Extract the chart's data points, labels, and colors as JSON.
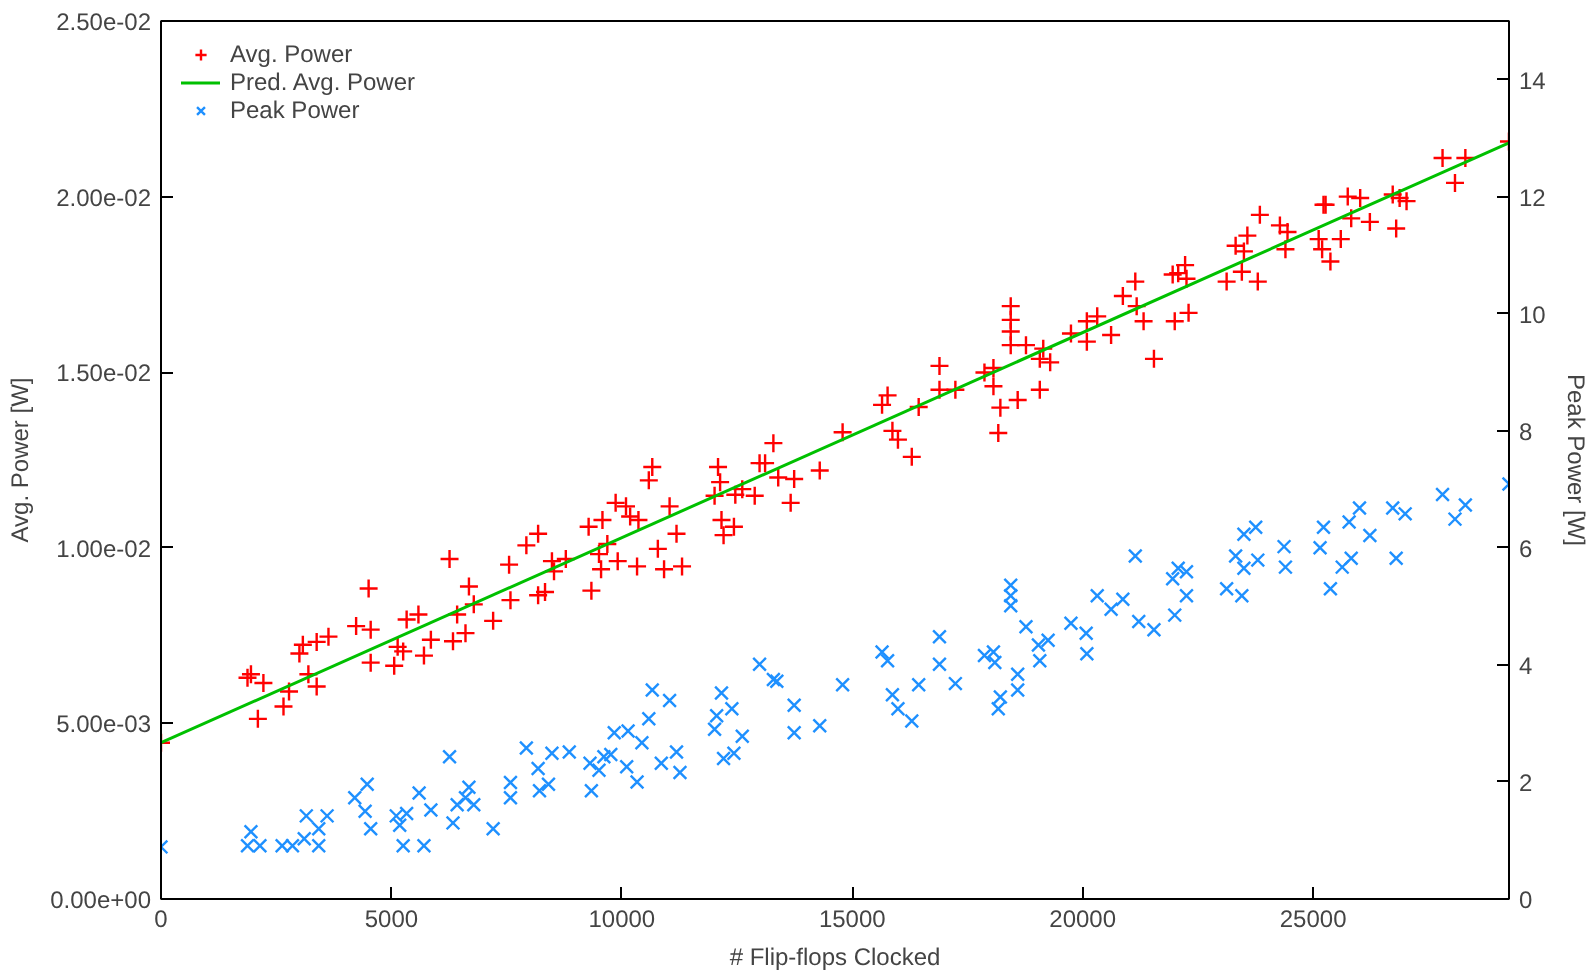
{
  "chart_data": {
    "type": "scatter",
    "xlabel": "# Flip-flops Clocked",
    "ylabel": "Avg. Power [W]",
    "y2label": "Peak Power [W]",
    "xlim": [
      0,
      29250
    ],
    "xticks": [
      0,
      5000,
      10000,
      15000,
      20000,
      25000
    ],
    "ylim": [
      0,
      0.025
    ],
    "yticks": [
      {
        "value": 0,
        "label": "0.00e+00"
      },
      {
        "value": 0.005,
        "label": "5.00e-03"
      },
      {
        "value": 0.01,
        "label": "1.00e-02"
      },
      {
        "value": 0.015,
        "label": "1.50e-02"
      },
      {
        "value": 0.02,
        "label": "2.00e-02"
      },
      {
        "value": 0.025,
        "label": "2.50e-02"
      }
    ],
    "y2lim": [
      0,
      15
    ],
    "y2ticks": [
      0,
      2,
      4,
      6,
      8,
      10,
      12,
      14
    ],
    "legend": "top left",
    "grid": false,
    "series": [
      {
        "name": "Avg. Power",
        "marker": "cross",
        "color": "#ff0000",
        "x": [
          0,
          1877,
          1952,
          2222,
          2102,
          2658,
          2778,
          3003,
          3078,
          3198,
          3378,
          3378,
          3634,
          4234,
          4505,
          4550,
          4550,
          5060,
          5135,
          5255,
          5330,
          5586,
          5706,
          5856,
          6261,
          6336,
          6426,
          6607,
          6682,
          6787,
          7207,
          7583,
          7553,
          7928,
          8183,
          8183,
          8333,
          8483,
          8528,
          8784,
          9279,
          9339,
          9504,
          9579,
          9549,
          9685,
          9865,
          9910,
          10090,
          10180,
          10360,
          10330,
          10585,
          10660,
          10781,
          10916,
          11036,
          11186,
          11306,
          12012,
          12087,
          12132,
          12162,
          12207,
          12432,
          12462,
          12613,
          12883,
          12988,
          13108,
          13288,
          13393,
          13663,
          13739,
          14294,
          14790,
          15646,
          15766,
          15871,
          15991,
          16291,
          16441,
          16892,
          16892,
          17237,
          17868,
          18063,
          18063,
          18168,
          18213,
          18438,
          18438,
          18438,
          18438,
          18589,
          18769,
          19069,
          19069,
          19144,
          19294,
          19745,
          20090,
          20090,
          20315,
          20616,
          20871,
          21141,
          21171,
          21321,
          21546,
          21952,
          21997,
          22072,
          22222,
          22252,
          22297,
          23123,
          23318,
          23453,
          23498,
          23573,
          23799,
          23844,
          24279,
          24399,
          24444,
          25120,
          25225,
          25270,
          25195,
          25375,
          25600,
          25751,
          25826,
          26021,
          26231,
          26727,
          26802,
          26877,
          27027,
          27808,
          28078,
          28303,
          29249
        ],
        "values": [
          0.00445,
          0.0063,
          0.0064,
          0.00615,
          0.00513,
          0.00548,
          0.00591,
          0.00699,
          0.00724,
          0.0064,
          0.00605,
          0.00732,
          0.00747,
          0.00777,
          0.00884,
          0.00767,
          0.00673,
          0.00664,
          0.00718,
          0.00705,
          0.00796,
          0.0081,
          0.00693,
          0.00738,
          0.00968,
          0.00734,
          0.0081,
          0.00757,
          0.0089,
          0.00839,
          0.00792,
          0.00851,
          0.00952,
          0.01007,
          0.0104,
          0.00865,
          0.00874,
          0.00962,
          0.00933,
          0.00968,
          0.0106,
          0.00878,
          0.00982,
          0.01079,
          0.00939,
          0.01011,
          0.01128,
          0.00962,
          0.01118,
          0.01089,
          0.01079,
          0.00947,
          0.01192,
          0.0123,
          0.00997,
          0.00939,
          0.01118,
          0.0104,
          0.00947,
          0.01148,
          0.0123,
          0.01187,
          0.01079,
          0.01036,
          0.0106,
          0.01151,
          0.01167,
          0.01148,
          0.01241,
          0.01241,
          0.01298,
          0.012,
          0.01128,
          0.01196,
          0.0122,
          0.01329,
          0.01407,
          0.01434,
          0.01333,
          0.01308,
          0.01259,
          0.01401,
          0.01518,
          0.0145,
          0.0145,
          0.01499,
          0.01512,
          0.0146,
          0.01327,
          0.01399,
          0.01688,
          0.01649,
          0.01616,
          0.01577,
          0.01421,
          0.01577,
          0.01538,
          0.0145,
          0.01567,
          0.01528,
          0.0161,
          0.01645,
          0.01587,
          0.01659,
          0.01606,
          0.01717,
          0.01758,
          0.01688,
          0.01645,
          0.01538,
          0.01778,
          0.01645,
          0.01782,
          0.01805,
          0.01766,
          0.01669,
          0.01758,
          0.0186,
          0.01786,
          0.01844,
          0.01889,
          0.01758,
          0.01948,
          0.01918,
          0.0185,
          0.01899,
          0.01879,
          0.01977,
          0.01977,
          0.0185,
          0.01815,
          0.01879,
          0.02,
          0.01938,
          0.01996,
          0.01928,
          0.02006,
          0.01909,
          0.01996,
          0.01987,
          0.0211,
          0.02039,
          0.0211,
          0.02157
        ]
      },
      {
        "name": "Pred. Avg. Power",
        "type": "line",
        "line_style": "solid",
        "color": "#00c000",
        "x": [
          0,
          29250
        ],
        "values": [
          0.00445,
          0.02153
        ]
      },
      {
        "name": "Peak Power",
        "marker": "x",
        "axis": "y2",
        "color": "#1e90ff",
        "x": [
          0,
          1877,
          1952,
          2147,
          2628,
          2853,
          3108,
          3153,
          3423,
          3423,
          3604,
          4204,
          4474,
          4429,
          4550,
          5105,
          5180,
          5255,
          5330,
          5601,
          5706,
          5856,
          6261,
          6336,
          6426,
          6607,
          6682,
          6787,
          7207,
          7583,
          7583,
          7928,
          8183,
          8213,
          8408,
          8483,
          8859,
          9309,
          9339,
          9504,
          9610,
          9760,
          9835,
          10105,
          10135,
          10330,
          10435,
          10585,
          10660,
          10856,
          11036,
          11186,
          11261,
          12012,
          12057,
          12162,
          12207,
          12387,
          12432,
          12613,
          12988,
          13288,
          13363,
          13739,
          13739,
          14294,
          14790,
          15646,
          15766,
          15871,
          15991,
          16291,
          16441,
          16892,
          16892,
          17237,
          17868,
          18063,
          18093,
          18168,
          18213,
          18438,
          18438,
          18438,
          18589,
          18589,
          18769,
          19039,
          19069,
          19249,
          19745,
          20075,
          20090,
          20315,
          20616,
          20871,
          21141,
          21216,
          21546,
          21952,
          21997,
          22072,
          22252,
          22252,
          23123,
          23318,
          23453,
          23498,
          23498,
          23754,
          23799,
          24369,
          24399,
          25150,
          25225,
          25375,
          25631,
          25826,
          25781,
          26006,
          26231,
          26727,
          26802,
          26997,
          27808,
          28078,
          28303,
          29249
        ],
        "values": [
          0.89,
          0.91,
          1.15,
          0.91,
          0.91,
          0.91,
          1.03,
          1.42,
          1.2,
          0.91,
          1.42,
          1.73,
          1.96,
          1.5,
          1.2,
          1.42,
          1.26,
          0.91,
          1.46,
          1.81,
          0.91,
          1.52,
          2.43,
          1.3,
          1.61,
          1.73,
          1.91,
          1.61,
          1.2,
          1.99,
          1.73,
          2.58,
          2.23,
          1.85,
          1.96,
          2.49,
          2.51,
          2.32,
          1.85,
          2.2,
          2.43,
          2.47,
          2.84,
          2.26,
          2.87,
          2.0,
          2.67,
          3.08,
          3.57,
          2.32,
          3.39,
          2.51,
          2.16,
          2.9,
          3.13,
          3.52,
          2.4,
          3.25,
          2.49,
          2.78,
          4.01,
          3.75,
          3.72,
          3.31,
          2.84,
          2.96,
          3.66,
          4.22,
          4.07,
          3.49,
          3.25,
          3.04,
          3.66,
          4.48,
          4.01,
          3.68,
          4.16,
          4.22,
          4.04,
          3.25,
          3.45,
          5.36,
          5.18,
          5.01,
          3.84,
          3.57,
          4.65,
          4.34,
          4.07,
          4.42,
          4.71,
          4.54,
          4.19,
          5.18,
          4.95,
          5.12,
          5.86,
          4.74,
          4.6,
          5.47,
          4.85,
          5.65,
          5.59,
          5.18,
          5.3,
          5.86,
          5.18,
          6.23,
          5.65,
          6.35,
          5.79,
          6.02,
          5.67,
          6.0,
          6.35,
          5.3,
          5.67,
          5.82,
          6.44,
          6.68,
          6.21,
          6.68,
          5.82,
          6.58,
          6.91,
          6.49,
          6.73,
          7.09
        ]
      }
    ]
  }
}
